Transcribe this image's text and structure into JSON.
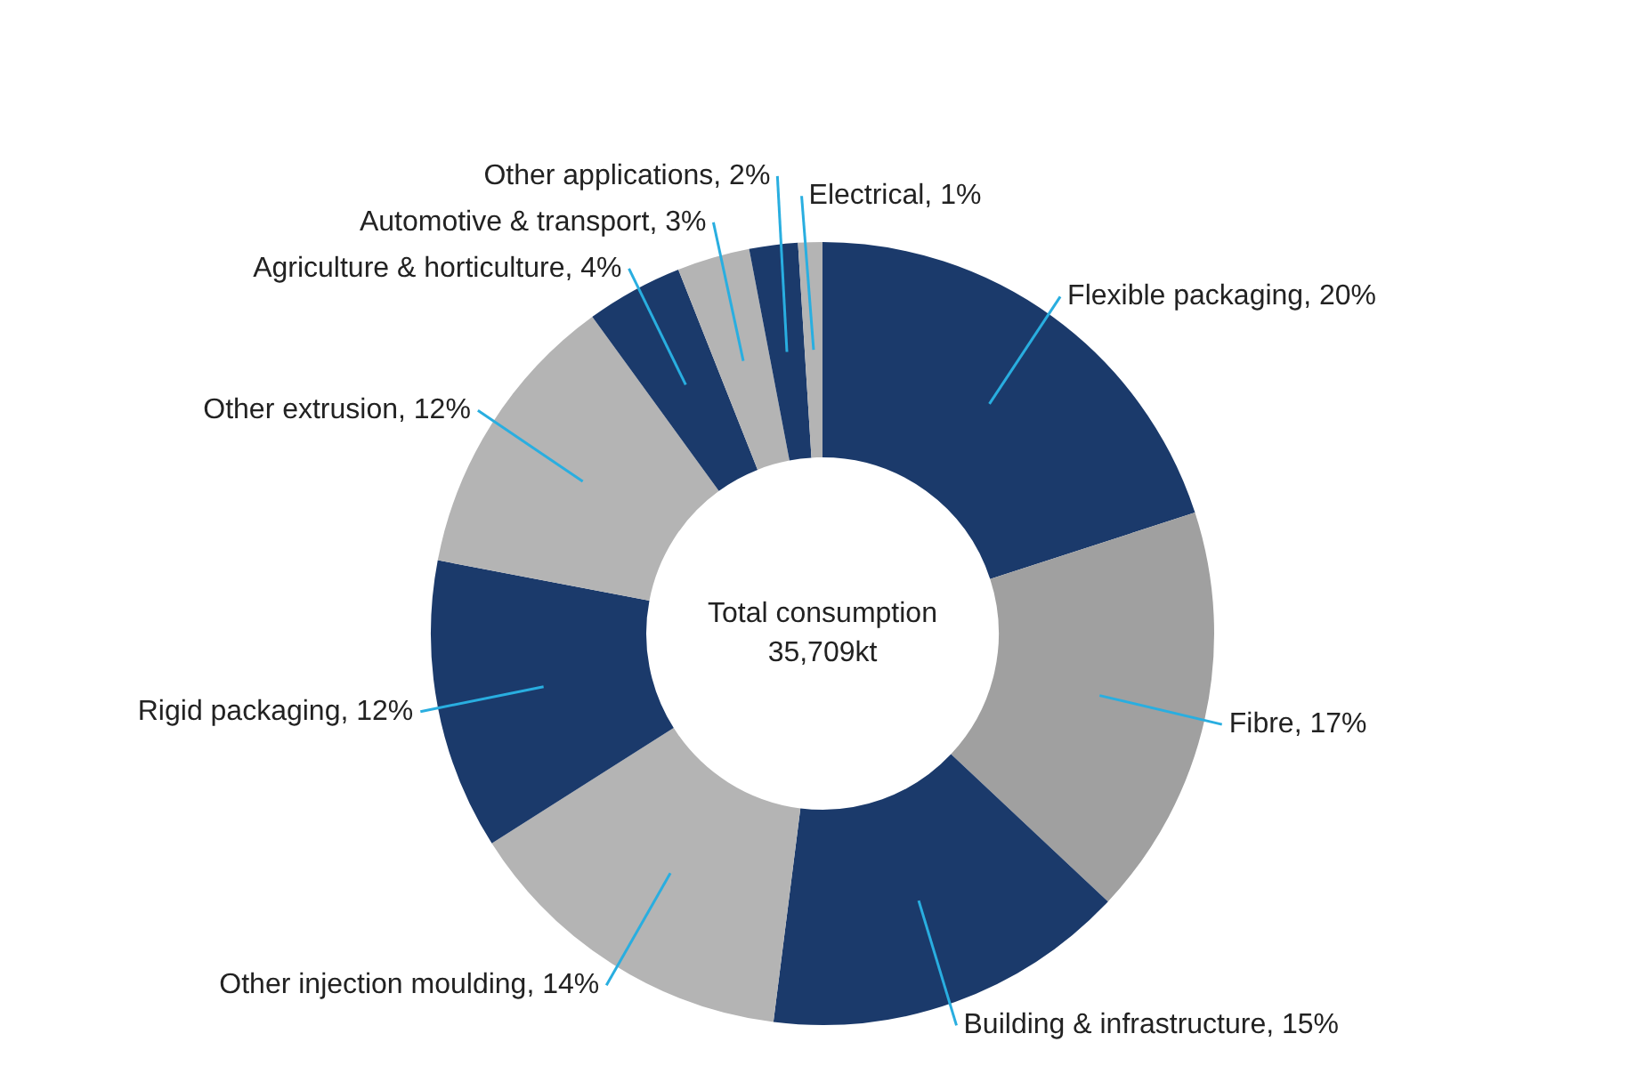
{
  "chart_data": {
    "type": "donut",
    "categories": [
      "Flexible packaging",
      "Fibre",
      "Building & infrastructure",
      "Other injection moulding",
      "Rigid packaging",
      "Other extrusion",
      "Agriculture & horticulture",
      "Automotive & transport",
      "Other applications",
      "Electrical"
    ],
    "values": [
      20,
      17,
      15,
      14,
      12,
      12,
      4,
      3,
      2,
      1
    ],
    "value_labels": [
      "20%",
      "17%",
      "15%",
      "14%",
      "12%",
      "12%",
      "4%",
      "3%",
      "2%",
      "1%"
    ],
    "colors": [
      "#1b3a6b",
      "#a0a0a0",
      "#1b3a6b",
      "#b4b4b4",
      "#1b3a6b",
      "#b4b4b4",
      "#1b3a6b",
      "#b4b4b4",
      "#1b3a6b",
      "#b4b4b4"
    ],
    "annotations": [
      "Total consumption",
      "35,709kt"
    ],
    "legend": false
  }
}
